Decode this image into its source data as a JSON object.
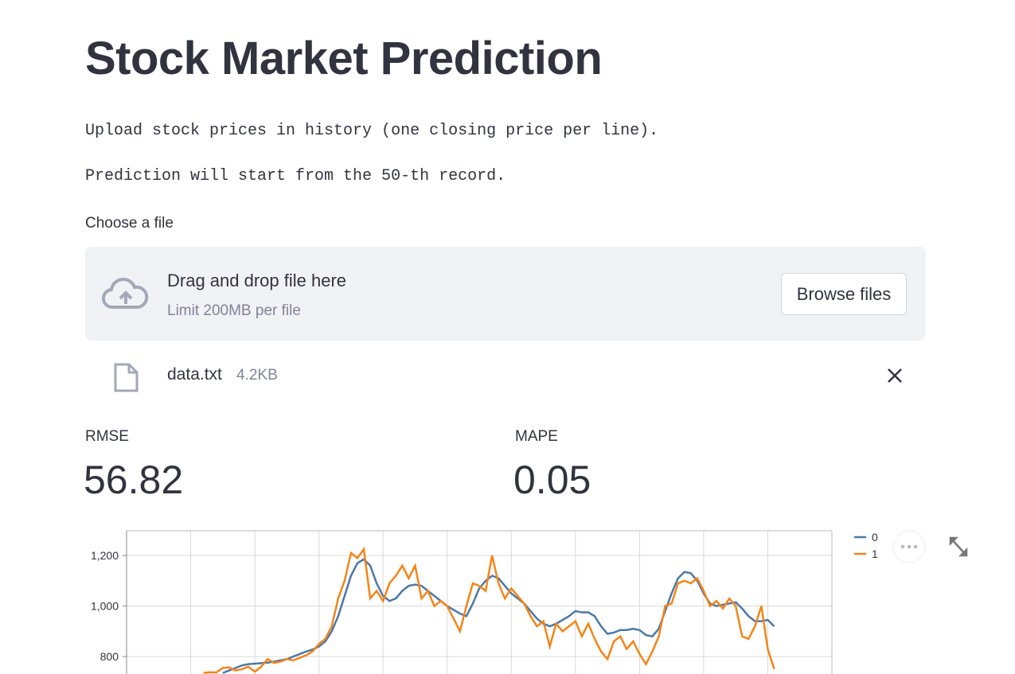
{
  "header": {
    "title": "Stock Market Prediction"
  },
  "paragraphs": [
    "Upload stock prices in history (one closing price per line).",
    "Prediction will start from the 50-th record."
  ],
  "uploader": {
    "label": "Choose a file",
    "dropzone_title": "Drag and drop file here",
    "limit": "Limit 200MB per file",
    "button": "Browse files",
    "file": {
      "name": "data.txt",
      "size": "4.2KB"
    }
  },
  "metrics": [
    {
      "label": "RMSE",
      "value": "56.82"
    },
    {
      "label": "MAPE",
      "value": "0.05"
    }
  ],
  "chart_data": {
    "type": "line",
    "x": [
      24,
      26,
      28,
      30,
      32,
      34,
      36,
      38,
      40,
      42,
      44,
      46,
      48,
      50,
      52,
      54,
      56,
      58,
      60,
      62,
      64,
      66,
      68,
      70,
      72,
      74,
      76,
      78,
      80,
      82,
      84,
      86,
      88,
      90,
      92,
      94,
      96,
      98,
      100,
      102,
      104,
      106,
      108,
      110,
      112,
      114,
      116,
      118,
      120,
      122,
      124,
      126,
      128,
      130,
      132,
      134,
      136,
      138,
      140,
      142,
      144,
      146,
      148,
      150,
      152,
      154,
      156,
      158,
      160,
      162,
      164,
      166,
      168,
      170,
      172,
      174,
      176,
      178,
      180,
      182,
      184,
      186,
      188,
      190,
      192,
      194,
      196,
      198,
      200,
      202
    ],
    "series": [
      {
        "name": "0",
        "color": "#4c78a8",
        "values": [
          null,
          null,
          null,
          735,
          745,
          755,
          765,
          770,
          772,
          774,
          776,
          780,
          785,
          790,
          800,
          810,
          820,
          828,
          840,
          860,
          900,
          960,
          1040,
          1120,
          1170,
          1185,
          1160,
          1090,
          1040,
          1020,
          1030,
          1060,
          1080,
          1085,
          1080,
          1060,
          1040,
          1020,
          1000,
          985,
          970,
          960,
          1010,
          1070,
          1100,
          1120,
          1110,
          1080,
          1050,
          1030,
          1010,
          980,
          950,
          930,
          920,
          930,
          945,
          960,
          980,
          975,
          975,
          960,
          920,
          890,
          895,
          905,
          905,
          910,
          905,
          885,
          880,
          910,
          980,
          1050,
          1110,
          1135,
          1130,
          1100,
          1050,
          1010,
          1000,
          1005,
          1010,
          1015,
          990,
          960,
          940,
          940,
          945,
          920
        ]
      },
      {
        "name": "1",
        "color": "#f58518",
        "values": [
          735,
          738,
          737,
          755,
          757,
          745,
          750,
          760,
          740,
          760,
          790,
          775,
          780,
          790,
          785,
          795,
          805,
          820,
          850,
          870,
          920,
          1030,
          1100,
          1210,
          1190,
          1225,
          1030,
          1060,
          1020,
          1090,
          1120,
          1160,
          1110,
          1160,
          1030,
          1060,
          1000,
          1020,
          1000,
          950,
          900,
          1000,
          1090,
          1080,
          1060,
          1200,
          1090,
          1030,
          1070,
          1040,
          1010,
          960,
          920,
          940,
          840,
          930,
          900,
          920,
          940,
          880,
          930,
          870,
          820,
          790,
          860,
          880,
          830,
          860,
          810,
          770,
          820,
          880,
          1000,
          1010,
          1090,
          1100,
          1090,
          1110,
          1060,
          1000,
          1020,
          990,
          1030,
          1000,
          880,
          870,
          920,
          1000,
          830,
          750
        ]
      }
    ],
    "xlim": [
      0,
      220
    ],
    "xticks": [
      0,
      20,
      40,
      60,
      80,
      100,
      120,
      140,
      160,
      180,
      200,
      220
    ],
    "ylim": [
      731,
      1298
    ],
    "yticks": [
      {
        "value": 800,
        "label": "800"
      },
      {
        "value": 1000,
        "label": "1,000"
      },
      {
        "value": 1200,
        "label": "1,200"
      }
    ],
    "grid": true,
    "legend": "right"
  }
}
